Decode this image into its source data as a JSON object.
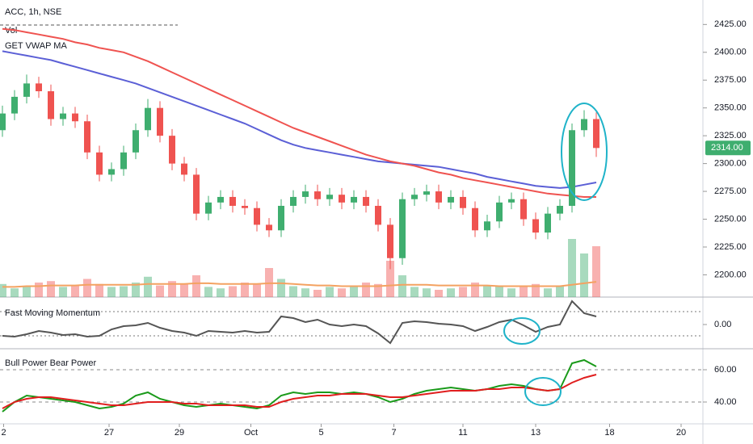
{
  "chart_data": [
    {
      "type": "candlestick",
      "title": "ACC, 1h, NSE",
      "xlim": [
        -0.2,
        57.8
      ],
      "ylim": [
        2180,
        2447
      ],
      "yticks": [
        {
          "value": 2200,
          "label": "2200.00"
        },
        {
          "value": 2225,
          "label": "2225.00"
        },
        {
          "value": 2250,
          "label": "2250.00"
        },
        {
          "value": 2275,
          "label": "2275.00"
        },
        {
          "value": 2300,
          "label": "2300.00"
        },
        {
          "value": 2325,
          "label": "2325.00"
        },
        {
          "value": 2350,
          "label": "2350.00"
        },
        {
          "value": 2375,
          "label": "2375.00"
        },
        {
          "value": 2400,
          "label": "2400.00"
        },
        {
          "value": 2425,
          "label": "2425.00"
        }
      ],
      "up_color": "#3fae6f",
      "down_color": "#ef5350",
      "open": [
        2330,
        2345,
        2360,
        2372,
        2365,
        2340,
        2345,
        2338,
        2310,
        2290,
        2295,
        2310,
        2330,
        2350,
        2325,
        2300,
        2290,
        2255,
        2265,
        2270,
        2262,
        2260,
        2245,
        2240,
        2262,
        2270,
        2275,
        2268,
        2272,
        2265,
        2270,
        2262,
        2245,
        2215,
        2268,
        2272,
        2275,
        2265,
        2270,
        2260,
        2240,
        2248,
        2265,
        2268,
        2250,
        2238,
        2255,
        2262,
        2330,
        2340
      ],
      "high": [
        2352,
        2366,
        2380,
        2378,
        2371,
        2351,
        2351,
        2344,
        2316,
        2301,
        2316,
        2336,
        2358,
        2356,
        2331,
        2306,
        2296,
        2271,
        2276,
        2276,
        2268,
        2266,
        2251,
        2268,
        2276,
        2281,
        2281,
        2278,
        2278,
        2276,
        2276,
        2268,
        2251,
        2274,
        2278,
        2281,
        2281,
        2276,
        2276,
        2266,
        2254,
        2271,
        2274,
        2274,
        2256,
        2261,
        2268,
        2336,
        2348,
        2346
      ],
      "low": [
        2324,
        2339,
        2354,
        2359,
        2334,
        2334,
        2332,
        2304,
        2284,
        2284,
        2289,
        2304,
        2324,
        2319,
        2294,
        2284,
        2249,
        2249,
        2259,
        2256,
        2254,
        2239,
        2234,
        2234,
        2256,
        2264,
        2262,
        2262,
        2259,
        2259,
        2256,
        2239,
        2205,
        2209,
        2262,
        2266,
        2259,
        2259,
        2254,
        2234,
        2234,
        2242,
        2259,
        2244,
        2232,
        2232,
        2249,
        2256,
        2324,
        2306
      ],
      "close": [
        2345,
        2360,
        2372,
        2365,
        2340,
        2345,
        2338,
        2310,
        2290,
        2295,
        2310,
        2330,
        2350,
        2325,
        2300,
        2290,
        2255,
        2265,
        2270,
        2262,
        2260,
        2245,
        2240,
        2262,
        2270,
        2275,
        2268,
        2272,
        2265,
        2270,
        2262,
        2245,
        2215,
        2268,
        2272,
        2275,
        2265,
        2270,
        2260,
        2240,
        2248,
        2265,
        2268,
        2250,
        2238,
        2255,
        2262,
        2330,
        2340,
        2314
      ],
      "last_price": 2314,
      "last_price_label": "2314.00",
      "series": [
        {
          "name": "GET VWAP MA",
          "color": "#5b5fd6",
          "values": [
            2401,
            2399,
            2397,
            2395,
            2393,
            2390,
            2387,
            2384,
            2381,
            2378,
            2375,
            2372,
            2368,
            2364,
            2360,
            2356,
            2352,
            2348,
            2344,
            2340,
            2336,
            2331,
            2326,
            2321,
            2317,
            2314,
            2312,
            2310,
            2308,
            2306,
            2304,
            2302,
            2301,
            2300,
            2299,
            2298,
            2297,
            2295,
            2293,
            2291,
            2288,
            2286,
            2284,
            2282,
            2280,
            2279,
            2278,
            2279,
            2281,
            2283
          ]
        },
        {
          "color": "#ef5350",
          "values": [
            2421,
            2420,
            2418,
            2416,
            2414,
            2412,
            2409,
            2407,
            2404,
            2402,
            2400,
            2396,
            2392,
            2387,
            2382,
            2377,
            2372,
            2367,
            2362,
            2357,
            2352,
            2347,
            2342,
            2337,
            2332,
            2328,
            2324,
            2320,
            2316,
            2312,
            2308,
            2305,
            2302,
            2300,
            2298,
            2295,
            2292,
            2290,
            2287,
            2285,
            2283,
            2281,
            2279,
            2277,
            2275,
            2273,
            2272,
            2271,
            2270,
            2270
          ]
        }
      ],
      "volume": {
        "name": "Vol",
        "ma_color": "#f4a261",
        "values": [
          18,
          12,
          15,
          20,
          22,
          14,
          16,
          25,
          18,
          14,
          15,
          20,
          28,
          16,
          22,
          18,
          30,
          14,
          12,
          15,
          20,
          18,
          40,
          25,
          15,
          12,
          10,
          14,
          12,
          15,
          20,
          18,
          50,
          30,
          14,
          12,
          10,
          12,
          14,
          20,
          16,
          15,
          12,
          14,
          18,
          12,
          15,
          80,
          60,
          70
        ],
        "ma": [
          14,
          14,
          15,
          15,
          16,
          16,
          16,
          17,
          17,
          17,
          17,
          17,
          18,
          18,
          18,
          18,
          19,
          19,
          18,
          18,
          18,
          18,
          19,
          19,
          18,
          17,
          16,
          16,
          15,
          15,
          15,
          15,
          16,
          17,
          17,
          17,
          16,
          16,
          16,
          16,
          16,
          15,
          15,
          15,
          15,
          15,
          15,
          17,
          19,
          21
        ]
      }
    },
    {
      "type": "line",
      "title": "Fast Moving Momentum",
      "xlim": [
        -0.2,
        57.8
      ],
      "ylim": [
        -3,
        3.2
      ],
      "yticks": [
        {
          "value": 0,
          "label": "0.00"
        }
      ],
      "levels": [
        1.6,
        -1.4
      ],
      "series": [
        {
          "color": "#555555",
          "values": [
            -1.4,
            -1.5,
            -1.2,
            -0.8,
            -1.0,
            -1.3,
            -1.2,
            -1.5,
            -1.4,
            -0.6,
            -0.2,
            -0.1,
            0.2,
            -0.4,
            -0.8,
            -1.0,
            -1.4,
            -0.8,
            -0.9,
            -1.0,
            -0.8,
            -1.0,
            -0.9,
            1.0,
            0.8,
            0.3,
            0.6,
            0.0,
            -0.2,
            0.0,
            -0.2,
            -1.1,
            -2.3,
            0.2,
            0.4,
            0.3,
            0.1,
            0.0,
            -0.2,
            -0.8,
            -0.3,
            0.3,
            0.6,
            -0.1,
            -0.9,
            -0.3,
            0.0,
            2.9,
            1.4,
            1.0
          ]
        }
      ]
    },
    {
      "type": "line",
      "title": "Bull Power Bear Power",
      "xlim": [
        -0.2,
        57.8
      ],
      "ylim": [
        26.5,
        71.5
      ],
      "yticks": [
        {
          "value": 40,
          "label": "40.00"
        },
        {
          "value": 60,
          "label": "60.00"
        }
      ],
      "grid": true,
      "series": [
        {
          "color": "#1a9a1a",
          "values": [
            34,
            40,
            44,
            43,
            42,
            41,
            40,
            38,
            36,
            37,
            39,
            44,
            46,
            42,
            40,
            38,
            37,
            38,
            39,
            38,
            37,
            36,
            38,
            44,
            46,
            45,
            46,
            46,
            45,
            46,
            45,
            43,
            40,
            42,
            45,
            47,
            48,
            49,
            48,
            47,
            48,
            50,
            51,
            50,
            48,
            47,
            48,
            64,
            66,
            62
          ]
        },
        {
          "color": "#e01e1e",
          "values": [
            36,
            40,
            42,
            43,
            43,
            42,
            41,
            40,
            39,
            38,
            38,
            39,
            40,
            40,
            40,
            39,
            39,
            38,
            38,
            38,
            38,
            37,
            37,
            40,
            42,
            43,
            44,
            44,
            45,
            45,
            45,
            44,
            43,
            43,
            44,
            45,
            46,
            47,
            47,
            47,
            48,
            48,
            49,
            49,
            48,
            47,
            48,
            52,
            55,
            57
          ]
        }
      ],
      "xticks": [
        {
          "value": 0.1,
          "label": "2"
        },
        {
          "value": 8.8,
          "label": "27"
        },
        {
          "value": 14.6,
          "label": "29"
        },
        {
          "value": 20.5,
          "label": "Oct"
        },
        {
          "value": 26.3,
          "label": "5"
        },
        {
          "value": 32.3,
          "label": "7"
        },
        {
          "value": 38,
          "label": "11"
        },
        {
          "value": 44,
          "label": "13"
        },
        {
          "value": 50.1,
          "label": "18"
        },
        {
          "value": 56,
          "label": "20"
        }
      ]
    }
  ]
}
